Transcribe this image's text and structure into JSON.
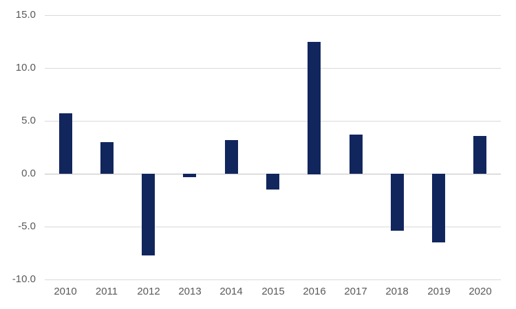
{
  "chart_data": {
    "type": "bar",
    "title": "",
    "xlabel": "",
    "ylabel": "",
    "categories": [
      "2010",
      "2011",
      "2012",
      "2013",
      "2014",
      "2015",
      "2016",
      "2017",
      "2018",
      "2019",
      "2020"
    ],
    "values": [
      5.7,
      3.0,
      -7.7,
      -0.3,
      3.2,
      -1.5,
      12.5,
      3.7,
      -5.4,
      -6.5,
      3.6
    ],
    "ylim": [
      -10,
      15
    ],
    "ytick_step": 5,
    "yticks": [
      15,
      10,
      5,
      0,
      -5,
      -10
    ],
    "ytick_labels": [
      "15.0",
      "10.0",
      "5.0",
      "0.0",
      "-5.0",
      "-10.0"
    ],
    "grid": true,
    "legend": false,
    "colors": {
      "bar": "#12265E",
      "gridline": "#D9D9D9",
      "zero_line": "#C0C0C0",
      "tick_text": "#595959",
      "background": "#FFFFFF"
    }
  }
}
